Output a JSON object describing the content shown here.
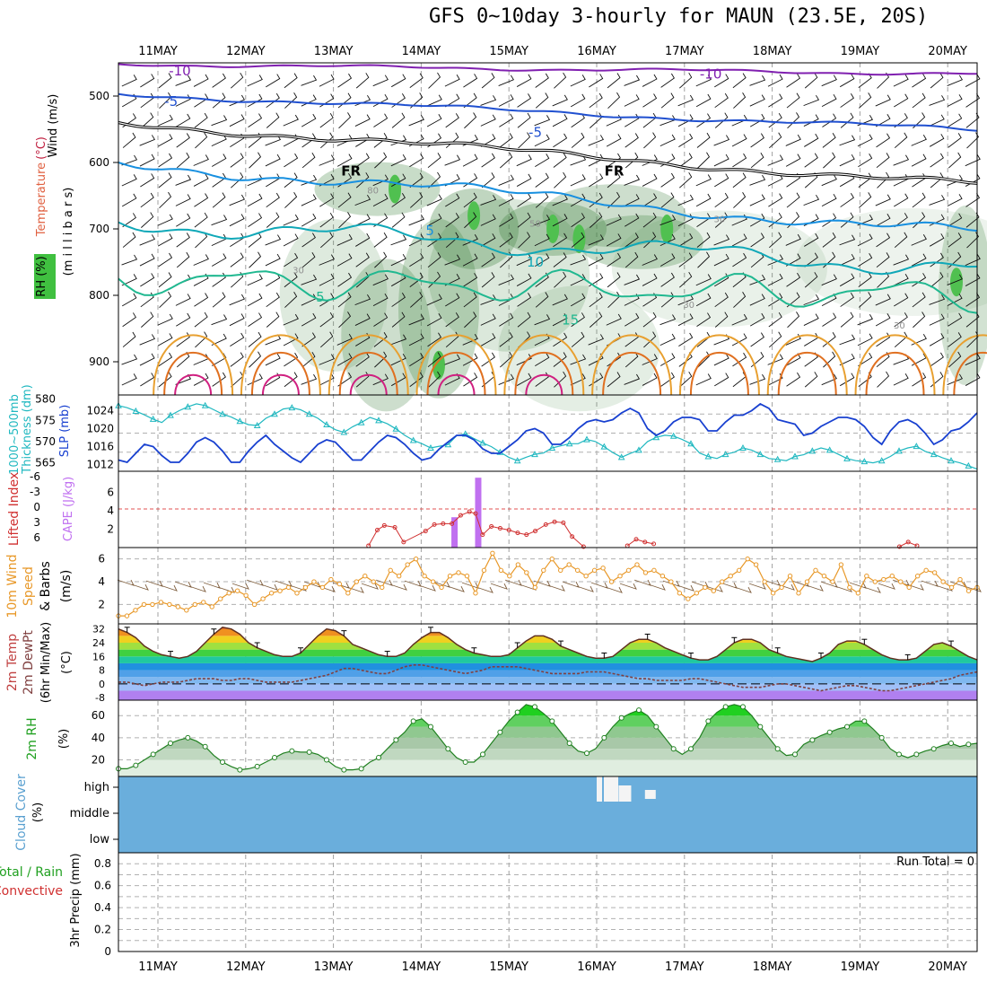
{
  "title": "GFS 0~10day 3-hourly for MAUN (23.5E, 20S)",
  "chart_data": [
    {
      "id": "upper",
      "type": "contour",
      "ylabel_parts": [
        {
          "text": "Wind (m/s)",
          "color": "#000000"
        },
        {
          "text": "Temperature (°C)",
          "color_grad": [
            "#c02040",
            "#2040c0"
          ],
          "parts": [
            {
              "text": "Temperature",
              "color": "#c84040"
            },
            {
              "text": "(°C)",
              "color": "#2040c0"
            }
          ]
        },
        {
          "text": "RH (%)",
          "color": "#000000"
        }
      ],
      "label_wind": "Wind (m/s)",
      "label_temp_a": "Temperature",
      "label_temp_b": "(°C)",
      "label_rh": "RH (%)",
      "label_mb": "(m i l l i b a r s)",
      "yticks": [
        500,
        600,
        700,
        800,
        900
      ],
      "ylim": [
        450,
        950
      ],
      "contour_labels": [
        {
          "text": "-10",
          "day": 1.25,
          "p": 462,
          "color": "#8020b0"
        },
        {
          "text": "-10",
          "day": 7.3,
          "p": 467,
          "color": "#8020b0"
        },
        {
          "text": "-5",
          "day": 1.15,
          "p": 508,
          "color": "#2050d0"
        },
        {
          "text": "-5",
          "day": 5.3,
          "p": 555,
          "color": "#2050d0"
        },
        {
          "text": "5",
          "day": 4.1,
          "p": 703,
          "color": "#1890e0"
        },
        {
          "text": "10",
          "day": 5.3,
          "p": 750,
          "color": "#10a8b8"
        },
        {
          "text": "15",
          "day": 5.7,
          "p": 837,
          "color": "#20b890"
        },
        {
          "text": "5",
          "day": 2.85,
          "p": 803,
          "color": "#20b890"
        },
        {
          "text": "FR",
          "day": 3.2,
          "p": 613,
          "color": "#000000"
        },
        {
          "text": "FR",
          "day": 6.2,
          "p": 613,
          "color": "#000000"
        },
        {
          "text": "30",
          "day": 2.6,
          "p": 760,
          "color": "#909090"
        },
        {
          "text": "50",
          "day": 5.3,
          "p": 690,
          "color": "#909090"
        },
        {
          "text": "30",
          "day": 7.4,
          "p": 683,
          "color": "#909090"
        },
        {
          "text": "30",
          "day": 7.05,
          "p": 812,
          "color": "#909090"
        },
        {
          "text": "30",
          "day": 9.45,
          "p": 843,
          "color": "#909090"
        },
        {
          "text": "80",
          "day": 3.45,
          "p": 640,
          "color": "#909090"
        }
      ]
    },
    {
      "id": "thickness",
      "type": "line",
      "ylabel_left": "1000~500mb Thickness (dm)",
      "ylabel_left_a": "1000~500mb",
      "ylabel_left_b": "Thickness (dm)",
      "ylabel_right": "SLP (mb)",
      "yticks_left": [
        565,
        570,
        575,
        580
      ],
      "ylim_left": [
        563,
        581
      ],
      "yticks_right": [
        1012,
        1016,
        1020,
        1024
      ],
      "ylim_right": [
        1010.5,
        1027.5
      ],
      "series": [
        {
          "axis": "left",
          "color": "#20b8c0",
          "values": [
            578.5,
            578.0,
            577.2,
            576.3,
            575.3,
            574.5,
            576.2,
            577.3,
            578.2,
            578.9,
            578.5,
            577.5,
            576.5,
            575.8,
            574.8,
            574.0,
            573.8,
            575.5,
            576.5,
            577.7,
            578.0,
            577.5,
            576.5,
            575.5,
            574.0,
            572.8,
            572.2,
            573.5,
            574.5,
            575.7,
            575.0,
            574.2,
            573.0,
            571.5,
            570.3,
            569.5,
            568.5,
            568.9,
            569.3,
            571.4,
            571.8,
            570.7,
            569.7,
            568.8,
            567.5,
            566.3,
            565.5,
            566.3,
            567.0,
            567.3,
            568.5,
            569.0,
            569.5,
            569.5,
            570.5,
            570.0,
            568.8,
            567.4,
            566.3,
            567.2,
            568.0,
            570.0,
            571.0,
            571.5,
            571.3,
            570.5,
            569.5,
            567.3,
            566.5,
            566.0,
            567.0,
            567.5,
            568.5,
            568.0,
            567.0,
            566.0,
            565.8,
            565.5,
            566.5,
            566.9,
            567.8,
            568.5,
            568.0,
            567.0,
            566.0,
            565.5,
            565.3,
            565.0,
            565.5,
            566.5,
            567.8,
            568.5,
            568.9,
            567.7,
            567.0,
            566.2,
            565.5,
            565.0,
            564.3,
            563.5
          ]
        },
        {
          "axis": "right",
          "color": "#1840d0",
          "values": [
            1013.0,
            1012.5,
            1014.5,
            1016.5,
            1016.0,
            1014.0,
            1012.5,
            1012.5,
            1014.5,
            1017.0,
            1018.0,
            1017.0,
            1015.0,
            1012.5,
            1012.5,
            1015.0,
            1017.0,
            1018.5,
            1016.5,
            1015.0,
            1013.5,
            1012.5,
            1014.5,
            1016.5,
            1017.5,
            1017.0,
            1015.0,
            1013.0,
            1013.0,
            1015.0,
            1017.0,
            1018.5,
            1018.0,
            1016.5,
            1014.5,
            1013.0,
            1013.5,
            1015.5,
            1017.0,
            1018.5,
            1018.5,
            1017.5,
            1015.5,
            1014.5,
            1014.5,
            1016.0,
            1017.5,
            1019.5,
            1020.0,
            1019.0,
            1016.5,
            1016.5,
            1018.0,
            1020.0,
            1021.5,
            1022.0,
            1021.5,
            1022.0,
            1023.5,
            1024.5,
            1023.5,
            1020.0,
            1018.5,
            1019.5,
            1021.5,
            1022.5,
            1022.5,
            1022.0,
            1019.5,
            1019.5,
            1021.5,
            1023.0,
            1023.0,
            1024.0,
            1025.5,
            1024.5,
            1022.0,
            1021.5,
            1021.0,
            1018.5,
            1019.0,
            1020.5,
            1021.5,
            1022.5,
            1022.5,
            1022.0,
            1020.5,
            1018.0,
            1016.5,
            1019.5,
            1021.5,
            1022.0,
            1021.0,
            1019.0,
            1016.5,
            1017.5,
            1019.5,
            1020.0,
            1021.5,
            1023.5
          ]
        }
      ]
    },
    {
      "id": "cape",
      "type": "bar_line",
      "ylabel_left": "Lifted Index",
      "ylabel_right": "CAPE (J/kg)",
      "yticks_left": [
        "-6",
        "-3",
        "0",
        "3",
        "6"
      ],
      "yticks_right": [
        2,
        4,
        6
      ],
      "ylim_right": [
        0,
        8.3
      ],
      "zero_line_value": 4.2,
      "bars": [
        {
          "day": 4.38,
          "value": 3.3
        },
        {
          "day": 4.65,
          "value": 7.6
        }
      ],
      "li_points": [
        {
          "day": 3.4,
          "v": 0.2
        },
        {
          "day": 3.5,
          "v": 1.9
        },
        {
          "day": 3.58,
          "v": 2.4
        },
        {
          "day": 3.7,
          "v": 2.2
        },
        {
          "day": 3.8,
          "v": 0.6
        },
        {
          "day": 4.05,
          "v": 1.8
        },
        {
          "day": 4.15,
          "v": 2.5
        },
        {
          "day": 4.25,
          "v": 2.6
        },
        {
          "day": 4.35,
          "v": 2.6
        },
        {
          "day": 4.45,
          "v": 3.5
        },
        {
          "day": 4.55,
          "v": 3.9
        },
        {
          "day": 4.62,
          "v": 3.7
        },
        {
          "day": 4.7,
          "v": 1.4
        },
        {
          "day": 4.8,
          "v": 2.3
        },
        {
          "day": 4.9,
          "v": 2.1
        },
        {
          "day": 5.0,
          "v": 1.9
        },
        {
          "day": 5.1,
          "v": 1.6
        },
        {
          "day": 5.2,
          "v": 1.4
        },
        {
          "day": 5.3,
          "v": 1.8
        },
        {
          "day": 5.42,
          "v": 2.5
        },
        {
          "day": 5.52,
          "v": 2.8
        },
        {
          "day": 5.62,
          "v": 2.7
        },
        {
          "day": 5.72,
          "v": 1.2
        },
        {
          "day": 5.85,
          "v": 0.1
        }
      ],
      "li_points2": [
        {
          "day": 6.35,
          "v": 0.2
        },
        {
          "day": 6.45,
          "v": 0.9
        },
        {
          "day": 6.55,
          "v": 0.6
        },
        {
          "day": 6.65,
          "v": 0.4
        }
      ],
      "li_points3": [
        {
          "day": 9.45,
          "v": 0.1
        },
        {
          "day": 9.55,
          "v": 0.6
        },
        {
          "day": 9.65,
          "v": 0.2
        }
      ]
    },
    {
      "id": "wind10m",
      "type": "line",
      "ylabel_a": "10m Wind",
      "ylabel_b": "Speed",
      "ylabel_c": "& Barbs",
      "ylabel_unit": "(m/s)",
      "yticks": [
        2,
        4,
        6
      ],
      "ylim": [
        0.3,
        7
      ],
      "series": [
        {
          "color": "#e89828",
          "values": [
            1.0,
            1.0,
            1.5,
            2.0,
            2.0,
            2.2,
            2.0,
            1.8,
            1.5,
            2.0,
            2.2,
            1.8,
            2.5,
            3.0,
            3.2,
            2.8,
            2.0,
            2.5,
            3.0,
            3.2,
            3.5,
            3.0,
            3.5,
            4.0,
            3.5,
            4.2,
            3.8,
            3.0,
            4.0,
            4.5,
            4.0,
            3.5,
            5.0,
            4.5,
            5.5,
            6.0,
            4.5,
            4.0,
            3.5,
            4.5,
            4.8,
            4.5,
            3.0,
            5.0,
            6.5,
            5.0,
            4.5,
            5.5,
            4.8,
            3.5,
            5.0,
            6.0,
            5.0,
            5.5,
            5.0,
            4.5,
            5.0,
            5.2,
            4.0,
            4.5,
            5.0,
            5.5,
            4.8,
            5.0,
            4.5,
            4.0,
            3.0,
            2.5,
            3.0,
            3.5,
            3.2,
            4.0,
            4.5,
            5.0,
            6.0,
            5.5,
            4.0,
            3.0,
            3.5,
            4.5,
            3.0,
            4.0,
            5.0,
            4.5,
            4.0,
            5.5,
            3.5,
            3.0,
            4.5,
            4.0,
            4.2,
            4.5,
            4.0,
            3.5,
            4.5,
            5.0,
            4.8,
            4.0,
            3.5,
            4.2,
            3.2,
            3.5
          ]
        }
      ]
    },
    {
      "id": "temp2m",
      "type": "area",
      "ylabel_a": "2m Temp",
      "ylabel_b": "2m DewPt",
      "ylabel_c": "(6hr Min/Max)",
      "ylabel_unit": "(°C)",
      "yticks": [
        "-8",
        "0",
        "8",
        "16",
        "24",
        "32"
      ],
      "ylim": [
        -9.5,
        35
      ],
      "temp_values": [
        32,
        30,
        27,
        22,
        19,
        17,
        16,
        15,
        16,
        19,
        24,
        29,
        33,
        32,
        29,
        24,
        21,
        19,
        17,
        16,
        16,
        18,
        23,
        28,
        32,
        31,
        28,
        23,
        21,
        19,
        17,
        16,
        16,
        18,
        23,
        27,
        30,
        30,
        27,
        23,
        20,
        18,
        17,
        16,
        16,
        17,
        21,
        25,
        28,
        28,
        26,
        22,
        20,
        18,
        16,
        15,
        15,
        16,
        20,
        24,
        26,
        26,
        24,
        21,
        19,
        17,
        15,
        14,
        14,
        16,
        20,
        24,
        26,
        26,
        24,
        20,
        18,
        16,
        15,
        14,
        13,
        15,
        18,
        23,
        25,
        25,
        23,
        20,
        17,
        15,
        14,
        14,
        15,
        19,
        23,
        24,
        22,
        19,
        16,
        14
      ],
      "dew_values": [
        1,
        1,
        0,
        -1,
        0,
        1,
        1,
        1,
        2,
        3,
        3,
        3,
        2,
        2,
        3,
        3,
        2,
        1,
        1,
        1,
        1,
        2,
        3,
        4,
        5,
        7,
        9,
        9,
        8,
        7,
        6,
        6,
        8,
        10,
        11,
        11,
        10,
        9,
        8,
        7,
        6,
        7,
        8,
        10,
        10,
        10,
        10,
        9,
        8,
        7,
        6,
        6,
        6,
        6,
        7,
        7,
        7,
        6,
        5,
        4,
        3,
        3,
        2,
        2,
        2,
        2,
        3,
        3,
        2,
        1,
        0,
        -1,
        -2,
        -2,
        -2,
        -1,
        0,
        0,
        -1,
        -2,
        -3,
        -4,
        -3,
        -2,
        -1,
        -1,
        -2,
        -3,
        -4,
        -4,
        -3,
        -2,
        -1,
        0,
        1,
        2,
        3,
        5,
        6,
        7
      ]
    },
    {
      "id": "rh2m",
      "type": "area",
      "ylabel_a": "2m RH",
      "ylabel_unit": "(%)",
      "yticks": [
        20,
        40,
        60
      ],
      "ylim": [
        5,
        74
      ],
      "values": [
        12,
        12,
        15,
        20,
        25,
        30,
        35,
        38,
        40,
        37,
        32,
        24,
        18,
        14,
        11,
        12,
        14,
        18,
        22,
        26,
        28,
        27,
        27,
        25,
        20,
        14,
        11,
        11,
        12,
        18,
        22,
        30,
        38,
        45,
        55,
        57,
        50,
        40,
        30,
        22,
        18,
        18,
        25,
        35,
        45,
        55,
        63,
        70,
        68,
        62,
        55,
        45,
        35,
        28,
        26,
        30,
        40,
        50,
        58,
        62,
        65,
        60,
        50,
        40,
        30,
        25,
        30,
        40,
        55,
        63,
        68,
        70,
        68,
        60,
        50,
        40,
        30,
        24,
        25,
        34,
        38,
        42,
        45,
        48,
        50,
        55,
        55,
        48,
        40,
        30,
        25,
        22,
        25,
        28,
        30,
        33,
        35,
        32,
        34,
        35
      ]
    },
    {
      "id": "cloud",
      "type": "bar",
      "ylabel": "Cloud Cover",
      "ylabel_unit": "(%)",
      "yticks": [
        "high",
        "middle",
        "low"
      ]
    },
    {
      "id": "precip",
      "type": "bar",
      "ylabel_a": "Total / Rain",
      "ylabel_b": "Convective",
      "ylabel_c": "3hr Precip (mm)",
      "run_total": "Run Total = 0",
      "yticks": [
        "0",
        "0.2",
        "0.4",
        "0.6",
        "0.8"
      ],
      "ylim": [
        0,
        0.9
      ]
    }
  ],
  "x_axis": {
    "labels": [
      "11MAY",
      "12MAY",
      "13MAY",
      "14MAY",
      "15MAY",
      "16MAY",
      "17MAY",
      "18MAY",
      "19MAY",
      "20MAY"
    ],
    "start_offset": 0.55
  },
  "colors": {
    "rh_green": "#40c040",
    "temp_orange": "#e07020",
    "slp_blue": "#1840d0",
    "thickness_cyan": "#20b8c0",
    "cape_purple": "#c070f0",
    "li_red": "#d03030",
    "wind_orange": "#e89828",
    "cloud_blue": "#6aaedc"
  }
}
